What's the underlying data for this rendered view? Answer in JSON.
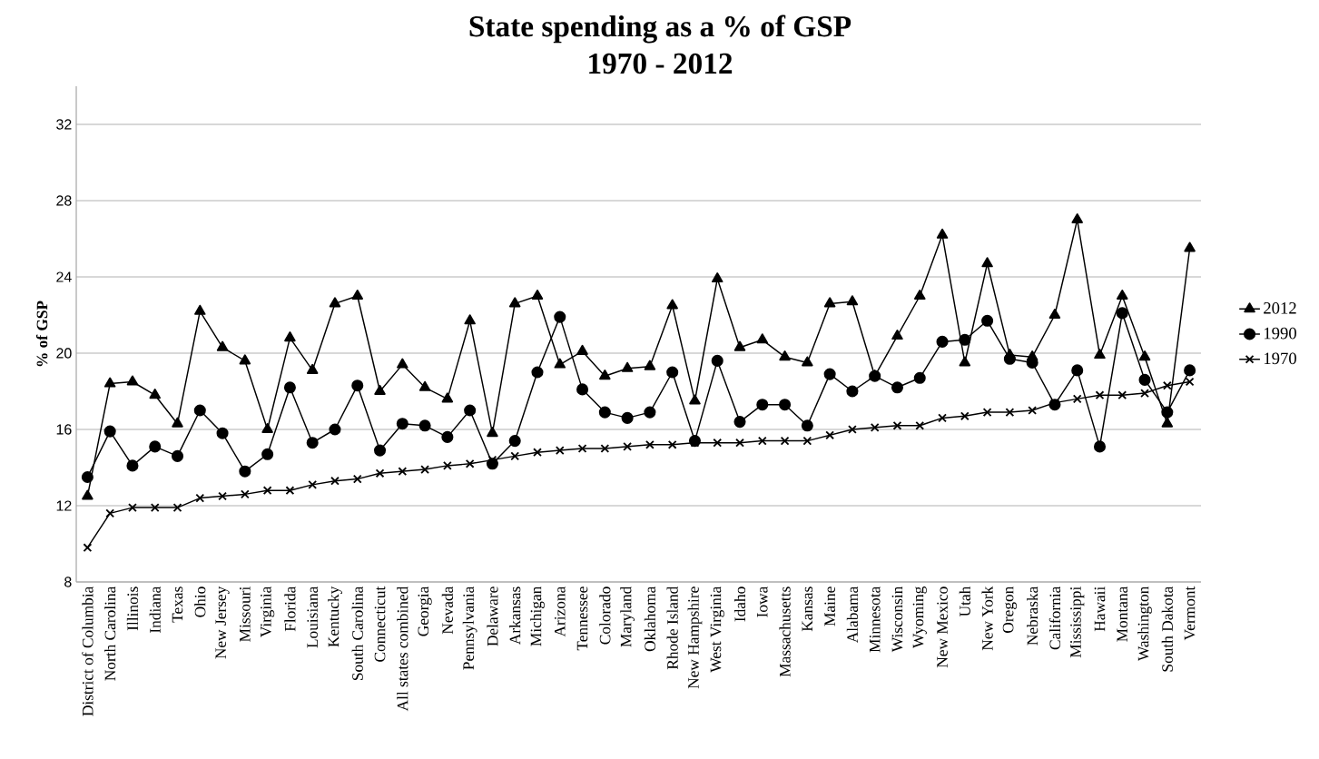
{
  "chart_data": {
    "type": "line",
    "title": "State spending as a % of GSP",
    "subtitle": "1970 - 2012",
    "ylabel": "% of GSP",
    "categories": [
      "District of Columbia",
      "North Carolina",
      "Illinois",
      "Indiana",
      "Texas",
      "Ohio",
      "New Jersey",
      "Missouri",
      "Virginia",
      "Florida",
      "Louisiana",
      "Kentucky",
      "South Carolina",
      "Connecticut",
      "All states combined",
      "Georgia",
      "Nevada",
      "Pennsylvania",
      "Delaware",
      "Arkansas",
      "Michigan",
      "Arizona",
      "Tennessee",
      "Colorado",
      "Maryland",
      "Oklahoma",
      "Rhode Island",
      "New Hampshire",
      "West Virginia",
      "Idaho",
      "Iowa",
      "Massachusetts",
      "Kansas",
      "Maine",
      "Alabama",
      "Minnesota",
      "Wisconsin",
      "Wyoming",
      "New Mexico",
      "Utah",
      "New York",
      "Oregon",
      "Nebraska",
      "California",
      "Mississippi",
      "Hawaii",
      "Montana",
      "Washington",
      "South Dakota",
      "Vermont"
    ],
    "series": [
      {
        "name": "2012",
        "color": "#000000",
        "marker": "triangle",
        "values": [
          12.5,
          18.4,
          18.5,
          17.8,
          16.3,
          22.2,
          20.3,
          19.6,
          16.0,
          20.8,
          19.1,
          22.6,
          23.0,
          18.0,
          19.4,
          18.2,
          17.6,
          21.7,
          15.8,
          22.6,
          23.0,
          19.4,
          20.1,
          18.8,
          19.2,
          19.3,
          22.5,
          17.5,
          23.9,
          20.3,
          20.7,
          19.8,
          19.5,
          22.6,
          22.7,
          18.8,
          20.9,
          23.0,
          26.2,
          19.5,
          24.7,
          19.9,
          19.8,
          22.0,
          27.0,
          19.9,
          23.0,
          19.8,
          16.3,
          25.5
        ]
      },
      {
        "name": "1990",
        "color": "#000000",
        "marker": "circle",
        "values": [
          13.5,
          15.9,
          14.1,
          15.1,
          14.6,
          17.0,
          15.8,
          13.8,
          14.7,
          18.2,
          15.3,
          16.0,
          18.3,
          14.9,
          16.3,
          16.2,
          15.6,
          17.0,
          14.2,
          15.4,
          19.0,
          21.9,
          18.1,
          16.9,
          16.6,
          16.9,
          19.0,
          15.4,
          19.6,
          16.4,
          17.3,
          17.3,
          16.2,
          18.9,
          18.0,
          18.8,
          18.2,
          18.7,
          20.6,
          20.7,
          21.7,
          19.7,
          19.5,
          17.3,
          19.1,
          15.1,
          22.1,
          18.6,
          16.9,
          19.1
        ]
      },
      {
        "name": "1970",
        "color": "#000000",
        "marker": "cross",
        "values": [
          9.8,
          11.6,
          11.9,
          11.9,
          11.9,
          12.4,
          12.5,
          12.6,
          12.8,
          12.8,
          13.1,
          13.3,
          13.4,
          13.7,
          13.8,
          13.9,
          14.1,
          14.2,
          14.4,
          14.6,
          14.8,
          14.9,
          15.0,
          15.0,
          15.1,
          15.2,
          15.2,
          15.3,
          15.3,
          15.3,
          15.4,
          15.4,
          15.4,
          15.7,
          16.0,
          16.1,
          16.2,
          16.2,
          16.6,
          16.7,
          16.9,
          16.9,
          17.0,
          17.4,
          17.6,
          17.8,
          17.8,
          17.9,
          18.3,
          18.5
        ]
      }
    ],
    "ylim": [
      8,
      34
    ],
    "yticks": [
      8,
      12,
      16,
      20,
      24,
      28,
      32
    ],
    "grid": "y",
    "legend": "right",
    "line_style": "solid"
  }
}
